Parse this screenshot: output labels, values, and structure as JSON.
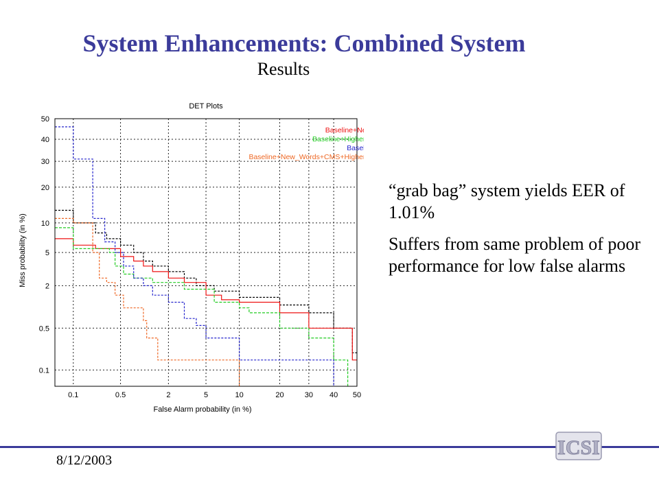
{
  "slide": {
    "title": "System Enhancements: Combined System",
    "subtitle": "Results",
    "bullets": [
      "“grab bag” system yields EER of 1.01%",
      "Suffers from same problem of poor performance for low false alarms"
    ],
    "date": "8/12/2003",
    "logo_text": "ICSI"
  },
  "chart_data": {
    "type": "line",
    "title": "DET Plots",
    "xlabel": "False Alarm probability (in %)",
    "ylabel": "Miss probability (in %)",
    "x_scale": "probit",
    "y_scale": "probit",
    "xlim": [
      0.05,
      50
    ],
    "ylim": [
      0.05,
      50
    ],
    "x_ticks": [
      0.1,
      0.5,
      2,
      5,
      10,
      20,
      30,
      40,
      50
    ],
    "x_tick_labels": [
      "0.1",
      "0.5",
      "2",
      "5",
      "10",
      "20",
      "30",
      "40",
      "50"
    ],
    "y_ticks": [
      0.1,
      0.5,
      2,
      5,
      10,
      20,
      30,
      40,
      50
    ],
    "y_tick_labels": [
      "0.1",
      "0.5",
      "2",
      "5",
      "10",
      "20",
      "30",
      "40",
      "50"
    ],
    "grid": true,
    "legend_position": "top-right",
    "series": [
      {
        "name": "Baseline",
        "color": "#000000",
        "dash": "3,2",
        "sample": "--------",
        "points": [
          [
            0.05,
            13
          ],
          [
            0.1,
            13
          ],
          [
            0.1,
            10
          ],
          [
            0.22,
            10
          ],
          [
            0.22,
            8
          ],
          [
            0.32,
            8
          ],
          [
            0.32,
            7
          ],
          [
            0.5,
            7
          ],
          [
            0.5,
            6
          ],
          [
            0.75,
            6
          ],
          [
            0.75,
            5
          ],
          [
            1,
            5
          ],
          [
            1,
            4
          ],
          [
            1.3,
            4
          ],
          [
            1.3,
            3.5
          ],
          [
            2,
            3.5
          ],
          [
            2,
            3
          ],
          [
            3,
            3
          ],
          [
            3,
            2.5
          ],
          [
            4,
            2.5
          ],
          [
            4,
            2
          ],
          [
            6,
            2
          ],
          [
            6,
            1.7
          ],
          [
            10,
            1.7
          ],
          [
            10,
            1.4
          ],
          [
            20,
            1.4
          ],
          [
            20,
            1.1
          ],
          [
            30,
            1.1
          ],
          [
            30,
            0.85
          ],
          [
            40,
            0.85
          ],
          [
            40,
            0.5
          ],
          [
            48,
            0.5
          ],
          [
            48,
            0.2
          ],
          [
            50,
            0.2
          ]
        ]
      },
      {
        "name": "Baseline+New_words",
        "color": "#ee1111",
        "dash": "",
        "sample": "———",
        "points": [
          [
            0.05,
            7
          ],
          [
            0.1,
            7
          ],
          [
            0.1,
            6
          ],
          [
            0.22,
            6
          ],
          [
            0.22,
            5.5
          ],
          [
            0.5,
            5.5
          ],
          [
            0.5,
            4.5
          ],
          [
            0.75,
            4.5
          ],
          [
            0.75,
            4
          ],
          [
            1,
            4
          ],
          [
            1,
            3.5
          ],
          [
            1.3,
            3.5
          ],
          [
            1.3,
            3
          ],
          [
            2,
            3
          ],
          [
            2,
            2.5
          ],
          [
            3,
            2.5
          ],
          [
            3,
            2.2
          ],
          [
            5,
            2.2
          ],
          [
            5,
            1.5
          ],
          [
            7,
            1.5
          ],
          [
            7,
            1.3
          ],
          [
            10,
            1.3
          ],
          [
            10,
            1.2
          ],
          [
            20,
            1.2
          ],
          [
            20,
            0.85
          ],
          [
            30,
            0.85
          ],
          [
            30,
            0.5
          ],
          [
            48,
            0.5
          ],
          [
            48,
            0.15
          ],
          [
            50,
            0.15
          ]
        ]
      },
      {
        "name": "Baseline+Higher_Cepstra",
        "color": "#22cc22",
        "dash": "4,2",
        "sample": "-------",
        "points": [
          [
            0.05,
            9
          ],
          [
            0.1,
            9
          ],
          [
            0.1,
            5.5
          ],
          [
            0.35,
            5.5
          ],
          [
            0.35,
            5
          ],
          [
            0.42,
            5
          ],
          [
            0.42,
            3.5
          ],
          [
            0.55,
            3.5
          ],
          [
            0.55,
            2.8
          ],
          [
            0.75,
            2.8
          ],
          [
            0.75,
            2.5
          ],
          [
            1.3,
            2.5
          ],
          [
            1.3,
            2.2
          ],
          [
            3,
            2.2
          ],
          [
            3,
            1.8
          ],
          [
            6,
            1.8
          ],
          [
            6,
            1.2
          ],
          [
            10,
            1.2
          ],
          [
            10,
            1
          ],
          [
            12,
            1
          ],
          [
            12,
            0.85
          ],
          [
            20,
            0.85
          ],
          [
            20,
            0.5
          ],
          [
            30,
            0.5
          ],
          [
            30,
            0.35
          ],
          [
            40,
            0.35
          ],
          [
            40,
            0.15
          ],
          [
            46,
            0.15
          ],
          [
            46,
            0.05
          ]
        ]
      },
      {
        "name": "Baseline+CMS",
        "color": "#2222cc",
        "dash": "3,2",
        "sample": "-------",
        "points": [
          [
            0.05,
            46
          ],
          [
            0.1,
            46
          ],
          [
            0.1,
            31
          ],
          [
            0.2,
            31
          ],
          [
            0.2,
            11
          ],
          [
            0.3,
            11
          ],
          [
            0.3,
            6.5
          ],
          [
            0.42,
            6.5
          ],
          [
            0.42,
            5
          ],
          [
            0.55,
            5
          ],
          [
            0.55,
            3.5
          ],
          [
            0.75,
            3.5
          ],
          [
            0.75,
            2.5
          ],
          [
            1,
            2.5
          ],
          [
            1,
            2
          ],
          [
            1.3,
            2
          ],
          [
            1.3,
            1.5
          ],
          [
            2,
            1.5
          ],
          [
            2,
            1.2
          ],
          [
            3,
            1.2
          ],
          [
            3,
            0.7
          ],
          [
            4,
            0.7
          ],
          [
            4,
            0.55
          ],
          [
            5,
            0.55
          ],
          [
            5,
            0.35
          ],
          [
            10,
            0.35
          ],
          [
            10,
            0.15
          ],
          [
            40,
            0.15
          ],
          [
            40,
            0.05
          ]
        ]
      },
      {
        "name": "Baseline+New_Words+CMS+Higher_Cepstra",
        "color": "#ee6622",
        "dash": "3,2",
        "sample": "--------",
        "points": [
          [
            0.05,
            11
          ],
          [
            0.1,
            11
          ],
          [
            0.1,
            10
          ],
          [
            0.2,
            10
          ],
          [
            0.2,
            5
          ],
          [
            0.25,
            5
          ],
          [
            0.25,
            2.5
          ],
          [
            0.32,
            2.5
          ],
          [
            0.32,
            2.2
          ],
          [
            0.42,
            2.2
          ],
          [
            0.42,
            1.5
          ],
          [
            0.55,
            1.5
          ],
          [
            0.55,
            1
          ],
          [
            1,
            1
          ],
          [
            1,
            0.65
          ],
          [
            1.1,
            0.65
          ],
          [
            1.1,
            0.35
          ],
          [
            1.5,
            0.35
          ],
          [
            1.5,
            0.15
          ],
          [
            10,
            0.15
          ],
          [
            10,
            0.05
          ]
        ]
      }
    ]
  }
}
